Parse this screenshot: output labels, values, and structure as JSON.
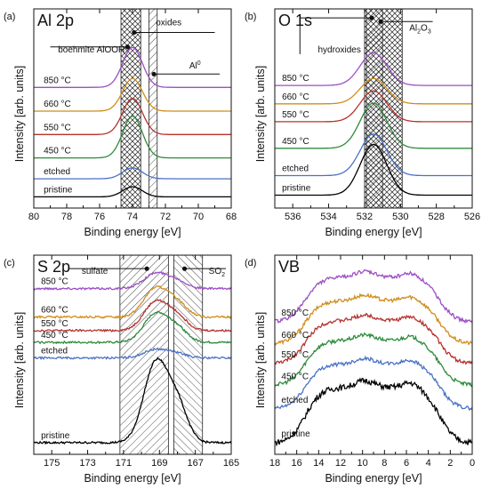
{
  "colors": {
    "pristine": "#000000",
    "etched": "#4a72c4",
    "450": "#2e8b3c",
    "550": "#b5332e",
    "660": "#cf8d1c",
    "850": "#9b4fc4"
  },
  "chart_data": [
    {
      "type": "line",
      "panel_label": "(a)",
      "title": "Al 2p",
      "xlabel": "Binding energy [eV]",
      "ylabel": "Intensity [arb. units]",
      "xlim": [
        80,
        68
      ],
      "x_reversed": true,
      "xticks": [
        "80",
        "78",
        "76",
        "74",
        "72",
        "70",
        "68"
      ],
      "xtick_values": [
        80,
        78,
        76,
        74,
        72,
        70,
        68
      ],
      "grid": false,
      "curve": {
        "kind": "peaks",
        "peaks": [
          [
            74.0,
            1.0,
            0.85
          ]
        ],
        "wing": 0.03
      },
      "series": [
        {
          "name": "pristine",
          "color_key": "pristine",
          "offset": 0.0,
          "amp": 0.28,
          "noise": 0.0
        },
        {
          "name": "etched",
          "color_key": "etched",
          "offset": 0.5,
          "amp": 0.3,
          "noise": 0.0
        },
        {
          "name": "450 °C",
          "color_key": "450",
          "offset": 1.05,
          "amp": 1.15,
          "noise": 0.0
        },
        {
          "name": "550 °C",
          "color_key": "550",
          "offset": 1.7,
          "amp": 1.0,
          "noise": 0.0
        },
        {
          "name": "660 °C",
          "color_key": "660",
          "offset": 2.35,
          "amp": 0.9,
          "noise": 0.0
        },
        {
          "name": "850 °C",
          "color_key": "850",
          "offset": 3.0,
          "amp": 1.1,
          "noise": 0.0
        }
      ],
      "ylim": [
        -0.3,
        5.2
      ],
      "label_x": 79.4,
      "bands": [
        {
          "from": 74.7,
          "to": 73.5,
          "hatch": "hatch-cross"
        },
        {
          "from": 73.0,
          "to": 72.5,
          "hatch": "hatch-diag"
        }
      ],
      "annotations": [
        {
          "text": "oxides",
          "x": 71.8,
          "y": 4.75,
          "line": [
            [
              73.9,
              4.55
            ],
            [
              69.0,
              4.55
            ]
          ],
          "dot": [
            73.9,
            4.55
          ],
          "sup": ""
        },
        {
          "text": "boehmite AlOOH",
          "x": 76.5,
          "y": 4.0,
          "line": [
            [
              79.0,
              4.15
            ],
            [
              74.3,
              4.15
            ]
          ],
          "dot": [
            74.3,
            4.15
          ],
          "sup": ""
        },
        {
          "text": "Al",
          "x": 70.2,
          "y": 3.55,
          "line": [
            [
              72.7,
              3.4
            ],
            [
              68.7,
              3.4
            ]
          ],
          "dot": [
            72.7,
            3.4
          ],
          "sup": "0"
        }
      ]
    },
    {
      "type": "line",
      "panel_label": "(b)",
      "title": "O 1s",
      "xlabel": "Binding energy [eV]",
      "ylabel": "Intensity [arb. units]",
      "xlim": [
        537,
        526
      ],
      "x_reversed": true,
      "xticks": [
        "536",
        "534",
        "532",
        "530",
        "528",
        "526"
      ],
      "xtick_values": [
        536,
        534,
        532,
        530,
        528,
        526
      ],
      "grid": false,
      "curve": {
        "kind": "peaks",
        "peaks": [
          [
            531.5,
            1.0,
            1.05
          ]
        ],
        "wing": 0.04
      },
      "series": [
        {
          "name": "pristine",
          "color_key": "pristine",
          "offset": 0.0,
          "amp": 1.4,
          "noise": 0.0
        },
        {
          "name": "etched",
          "color_key": "etched",
          "offset": 0.55,
          "amp": 1.15,
          "noise": 0.0
        },
        {
          "name": "450 °C",
          "color_key": "450",
          "offset": 1.3,
          "amp": 1.25,
          "noise": 0.0
        },
        {
          "name": "550 °C",
          "color_key": "550",
          "offset": 2.05,
          "amp": 0.85,
          "noise": 0.0
        },
        {
          "name": "660 °C",
          "color_key": "660",
          "offset": 2.55,
          "amp": 0.7,
          "noise": 0.0
        },
        {
          "name": "850 °C",
          "color_key": "850",
          "offset": 3.05,
          "amp": 0.9,
          "noise": 0.0
        }
      ],
      "ylim": [
        -0.3,
        5.2
      ],
      "label_x": 536.6,
      "bands": [
        {
          "from": 532.0,
          "to": 529.9,
          "hatch": "hatch-cross"
        },
        {
          "from": 531.9,
          "to": 531.0,
          "hatch": "hatch-diag"
        }
      ],
      "annotations": [
        {
          "text": "Al",
          "x": 528.9,
          "y": 4.6,
          "line": [
            [
              531.1,
              4.85
            ],
            [
              528.2,
              4.85
            ]
          ],
          "dot": [
            531.1,
            4.85
          ],
          "sup": "",
          "sub_text": "2",
          "tail": "O",
          "tail_sub": "3"
        },
        {
          "text": "hydroxides",
          "x": 533.4,
          "y": 4.0,
          "line": [
            [
              535.6,
              4.95
            ],
            [
              531.6,
              4.95
            ]
          ],
          "dot": [
            531.6,
            4.95
          ],
          "sup": "",
          "stem": [
            [
              535.6,
              4.95
            ],
            [
              535.6,
              3.95
            ]
          ]
        }
      ]
    },
    {
      "type": "line",
      "panel_label": "(c)",
      "title": "S 2p",
      "xlabel": "Binding energy [eV]",
      "ylabel": "Intensity [arb. units]",
      "xlim": [
        176,
        165
      ],
      "x_reversed": true,
      "xticks": [
        "175",
        "173",
        "171",
        "169",
        "167",
        "165"
      ],
      "xtick_values": [
        175,
        173,
        171,
        169,
        167,
        165
      ],
      "grid": false,
      "curve": {
        "kind": "peaks",
        "peaks": [
          [
            169.2,
            1.0,
            0.95
          ],
          [
            168.0,
            0.45,
            0.8
          ]
        ],
        "wing": 0.02
      },
      "series": [
        {
          "name": "pristine",
          "color_key": "pristine",
          "offset": 0.0,
          "amp": 2.35,
          "noise": 0.03
        },
        {
          "name": "etched",
          "color_key": "etched",
          "offset": 2.55,
          "amp": 0.25,
          "noise": 0.03
        },
        {
          "name": "450 °C",
          "color_key": "450",
          "offset": 3.0,
          "amp": 0.85,
          "noise": 0.03
        },
        {
          "name": "550 °C",
          "color_key": "550",
          "offset": 3.35,
          "amp": 0.85,
          "noise": 0.03
        },
        {
          "name": "660 °C",
          "color_key": "660",
          "offset": 3.75,
          "amp": 0.85,
          "noise": 0.03
        },
        {
          "name": "850 °C",
          "color_key": "850",
          "offset": 4.6,
          "amp": 0.45,
          "noise": 0.03
        }
      ],
      "ylim": [
        -0.3,
        5.6
      ],
      "label_x": 175.6,
      "bands": [
        {
          "from": 171.2,
          "to": 168.5,
          "hatch": "hatch-diag"
        },
        {
          "from": 168.2,
          "to": 166.6,
          "hatch": "hatch-anti"
        }
      ],
      "annotations": [
        {
          "text": "sulfate",
          "x": 172.6,
          "y": 5.05,
          "line": [
            [
              174.1,
              5.2
            ],
            [
              169.7,
              5.2
            ]
          ],
          "dot": [
            169.7,
            5.2
          ],
          "sup": ""
        },
        {
          "text": "SO",
          "x": 165.8,
          "y": 5.05,
          "line": [
            [
              167.6,
              5.2
            ],
            [
              165.3,
              5.2
            ]
          ],
          "dot": [
            167.6,
            5.2
          ],
          "sup": "",
          "sub_text": "2"
        }
      ]
    },
    {
      "type": "line",
      "panel_label": "(d)",
      "title": "VB",
      "xlabel": "Binding energy [eV]",
      "ylabel": "Intensity [arb. units]",
      "xlim": [
        18,
        0
      ],
      "x_reversed": true,
      "xticks": [
        "18",
        "16",
        "14",
        "12",
        "10",
        "8",
        "6",
        "4",
        "2",
        "0"
      ],
      "xtick_values": [
        18,
        16,
        14,
        12,
        10,
        8,
        6,
        4,
        2,
        0
      ],
      "grid": false,
      "curve": {
        "kind": "plateau",
        "from": 15.2,
        "to": 3.0,
        "soft": 0.7,
        "peaks": [
          [
            9.8,
            0.12,
            1.2
          ],
          [
            5.6,
            0.1,
            1.0
          ]
        ]
      },
      "series": [
        {
          "name": "pristine",
          "color_key": "pristine",
          "offset": 0.0,
          "amp": 1.55,
          "noise": 0.08
        },
        {
          "name": "etched",
          "color_key": "etched",
          "offset": 0.95,
          "amp": 1.25,
          "noise": 0.05
        },
        {
          "name": "450 °C",
          "color_key": "450",
          "offset": 1.6,
          "amp": 1.25,
          "noise": 0.05
        },
        {
          "name": "550 °C",
          "color_key": "550",
          "offset": 2.2,
          "amp": 1.2,
          "noise": 0.05
        },
        {
          "name": "660 °C",
          "color_key": "660",
          "offset": 2.75,
          "amp": 1.2,
          "noise": 0.05
        },
        {
          "name": "850 °C",
          "color_key": "850",
          "offset": 3.35,
          "amp": 1.25,
          "noise": 0.05
        }
      ],
      "ylim": [
        -0.3,
        5.2
      ],
      "label_x": 17.4,
      "bands": [],
      "annotations": []
    }
  ]
}
